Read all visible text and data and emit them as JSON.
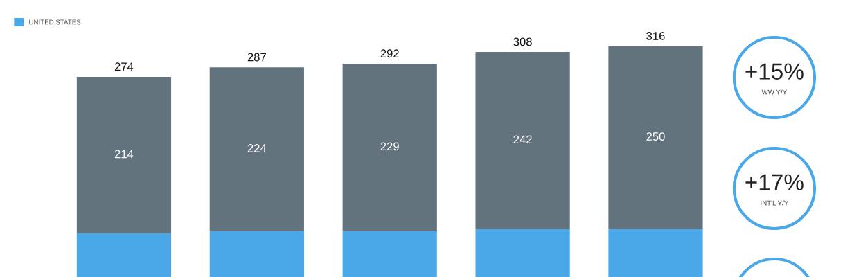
{
  "chart_data": {
    "type": "bar",
    "stacked": true,
    "categories": [
      null,
      null,
      null,
      null,
      null
    ],
    "tick_labels": false,
    "legend": "top left",
    "series": [
      {
        "name": "UNITED STATES",
        "color": "#4aa8e8",
        "values": [
          60,
          63,
          63,
          66,
          66
        ]
      },
      {
        "color": "#63737e",
        "values": [
          214,
          224,
          229,
          242,
          250
        ],
        "value_labels": [
          "214",
          "224",
          "229",
          "242",
          "250"
        ]
      }
    ],
    "totals": [
      "274",
      "287",
      "292",
      "308",
      "316"
    ],
    "annotations": [
      "+15%",
      "WW Y/Y",
      "+17%",
      "INT'L Y/Y"
    ]
  }
}
